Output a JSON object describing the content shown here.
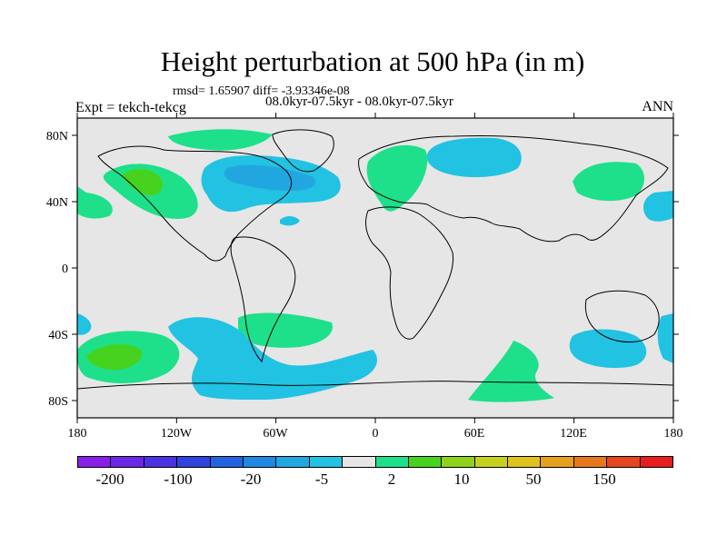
{
  "title": "Height perturbation at 500 hPa (in m)",
  "stats_line": "rmsd= 1.65907 diff= -3.93346e-08",
  "period_line": "08.0kyr-07.5kyr - 08.0kyr-07.5kyr",
  "experiment_line": "Expt = tekch-tekcg",
  "season": "ANN",
  "map": {
    "projection": "cylindrical-equidistant",
    "lon_range": [
      -180,
      180
    ],
    "lat_range": [
      -90,
      90
    ],
    "x_tick_labels": [
      "180",
      "120W",
      "60W",
      "0",
      "60E",
      "120E",
      "180"
    ],
    "y_tick_labels": [
      "80N",
      "40N",
      "0",
      "40S",
      "80S"
    ],
    "background_color": "#e6e6e6",
    "coastline_color": "#000000"
  },
  "colorbar": {
    "colors": [
      "#8a1ee6",
      "#6a28e6",
      "#4b32e0",
      "#2f44dc",
      "#2264e0",
      "#1f88e0",
      "#22a6e0",
      "#22c2e2",
      "#e6e6e6",
      "#1ee08a",
      "#46d21e",
      "#8ed21e",
      "#c6d21e",
      "#e0c21e",
      "#e6a01e",
      "#e6781e",
      "#e6461e",
      "#e61e1e"
    ],
    "labels": [
      "-200",
      "-100",
      "-20",
      "-5",
      "2",
      "10",
      "50",
      "150"
    ]
  },
  "colors": {
    "negative_small": "#22c2e2",
    "negative_medium": "#22a6e0",
    "positive_small": "#1ee08a",
    "positive_medium": "#46d21e"
  }
}
